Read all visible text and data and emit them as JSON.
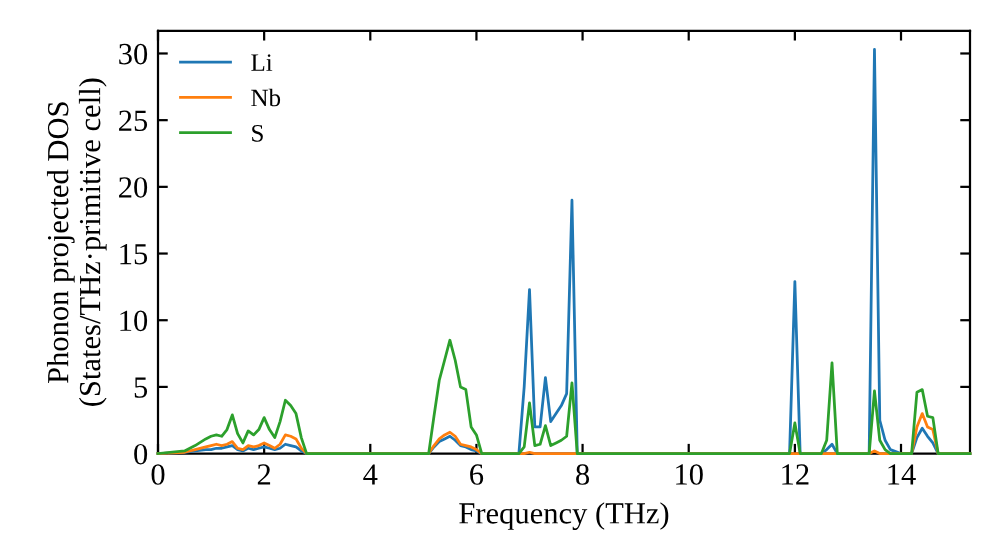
{
  "chart_data": {
    "type": "line",
    "xlabel": "Frequency (THz)",
    "ylabel": "Phonon projected DOS\n(States/THz·primitive cell)",
    "x": [
      0,
      0.5,
      0.7,
      0.9,
      1.0,
      1.1,
      1.2,
      1.3,
      1.4,
      1.5,
      1.6,
      1.7,
      1.8,
      1.9,
      2.0,
      2.1,
      2.2,
      2.3,
      2.4,
      2.5,
      2.6,
      2.7,
      2.8,
      2.9,
      5.1,
      5.2,
      5.3,
      5.4,
      5.5,
      5.6,
      5.7,
      5.8,
      5.9,
      6.0,
      6.1,
      6.8,
      6.9,
      7.0,
      7.1,
      7.2,
      7.3,
      7.4,
      7.5,
      7.6,
      7.7,
      7.8,
      7.9,
      11.9,
      12.0,
      12.1,
      12.5,
      12.6,
      12.7,
      12.8,
      13.4,
      13.5,
      13.6,
      13.7,
      13.8,
      14.0,
      14.2,
      14.3,
      14.4,
      14.5,
      14.6,
      14.7,
      15.3
    ],
    "series": [
      {
        "name": "Li",
        "color": "#1f77b4",
        "values": [
          0,
          0.1,
          0.2,
          0.3,
          0.3,
          0.4,
          0.4,
          0.5,
          0.6,
          0.3,
          0.2,
          0.4,
          0.3,
          0.4,
          0.5,
          0.4,
          0.3,
          0.4,
          0.7,
          0.6,
          0.5,
          0.2,
          0,
          0,
          0,
          0.5,
          0.9,
          1.1,
          1.3,
          1.0,
          0.6,
          0.5,
          0.3,
          0.2,
          0,
          0,
          5,
          12.3,
          2.0,
          2.0,
          5.7,
          2.4,
          3.0,
          3.6,
          4.5,
          19.0,
          0,
          0,
          12.9,
          0,
          0,
          0.3,
          0.7,
          0,
          0,
          30.3,
          2.5,
          1.0,
          0.3,
          0,
          0,
          1.2,
          1.9,
          1.3,
          0.8,
          0,
          0
        ]
      },
      {
        "name": "Nb",
        "color": "#ff7f0e",
        "values": [
          0,
          0.1,
          0.3,
          0.5,
          0.6,
          0.7,
          0.6,
          0.7,
          0.9,
          0.4,
          0.3,
          0.6,
          0.5,
          0.6,
          0.8,
          0.6,
          0.4,
          0.7,
          1.4,
          1.3,
          1.1,
          0.4,
          0,
          0,
          0,
          0.6,
          1.1,
          1.4,
          1.6,
          1.3,
          0.7,
          0.6,
          0.5,
          0.3,
          0,
          0,
          0,
          0.1,
          0,
          0,
          0,
          0,
          0,
          0,
          0,
          0,
          0,
          0,
          0,
          0,
          0,
          0,
          0,
          0,
          0,
          0.2,
          0,
          0,
          0,
          0,
          0,
          2.0,
          3.0,
          2.0,
          1.8,
          0,
          0
        ]
      },
      {
        "name": "S",
        "color": "#2ca02c",
        "values": [
          0,
          0.2,
          0.6,
          1.1,
          1.3,
          1.4,
          1.3,
          1.8,
          2.9,
          1.5,
          0.8,
          1.7,
          1.4,
          1.8,
          2.7,
          1.8,
          1.2,
          2.4,
          4.0,
          3.6,
          3.0,
          1.2,
          0,
          0,
          0,
          2.8,
          5.5,
          7.0,
          8.5,
          7.0,
          5.0,
          4.8,
          2.0,
          1.4,
          0,
          0,
          0.5,
          3.8,
          0.6,
          0.7,
          2.1,
          0.6,
          0.8,
          1.0,
          1.3,
          5.3,
          0,
          0,
          2.3,
          0,
          0,
          1.0,
          6.8,
          0,
          0,
          4.7,
          1.0,
          0.3,
          0,
          0,
          0,
          4.6,
          4.8,
          2.8,
          2.7,
          0,
          0
        ]
      }
    ],
    "xlim": [
      0,
      15.3
    ],
    "ylim": [
      0,
      31.7
    ],
    "xticks": [
      0,
      2,
      4,
      6,
      8,
      10,
      12,
      14
    ],
    "yticks": [
      0,
      5,
      10,
      15,
      20,
      25,
      30
    ],
    "legend": "top left",
    "grid": false
  }
}
